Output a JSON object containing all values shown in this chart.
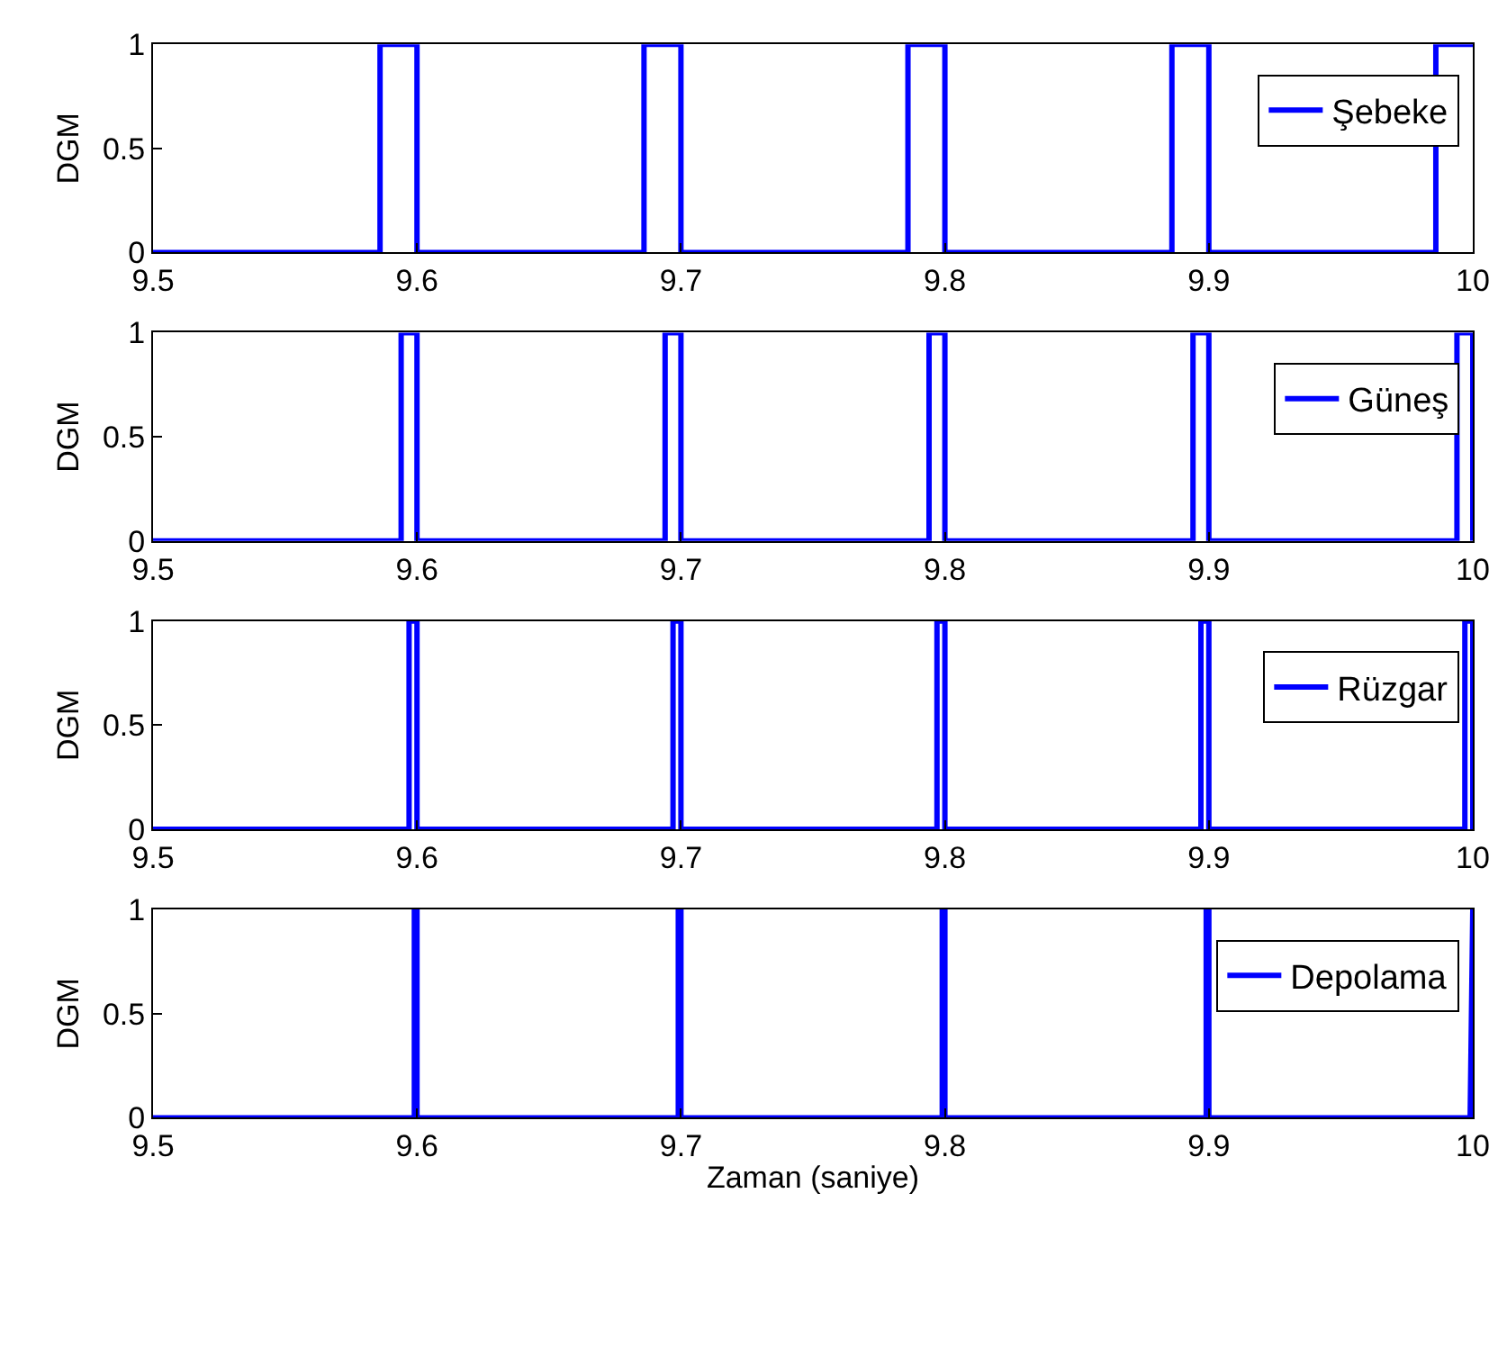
{
  "chart_data": [
    {
      "type": "line",
      "ylabel": "DGM",
      "xlim": [
        9.5,
        10
      ],
      "ylim": [
        0,
        1
      ],
      "xticks": [
        9.5,
        9.6,
        9.7,
        9.8,
        9.9,
        10
      ],
      "yticks": [
        0,
        0.5,
        1
      ],
      "legend": "top right",
      "series": [
        {
          "name": "Şebeke",
          "color": "#0000ff",
          "x": [
            9.5,
            9.586,
            9.586,
            9.6,
            9.6,
            9.686,
            9.686,
            9.7,
            9.7,
            9.786,
            9.786,
            9.8,
            9.8,
            9.886,
            9.886,
            9.9,
            9.9,
            9.986,
            9.986,
            10
          ],
          "values": [
            0,
            0,
            1,
            1,
            0,
            0,
            1,
            1,
            0,
            0,
            1,
            1,
            0,
            0,
            1,
            1,
            0,
            0,
            1,
            1
          ]
        }
      ]
    },
    {
      "type": "line",
      "ylabel": "DGM",
      "xlim": [
        9.5,
        10
      ],
      "ylim": [
        0,
        1
      ],
      "xticks": [
        9.5,
        9.6,
        9.7,
        9.8,
        9.9,
        10
      ],
      "yticks": [
        0,
        0.5,
        1
      ],
      "legend": "top right",
      "series": [
        {
          "name": "Güneş",
          "color": "#0000ff",
          "x": [
            9.5,
            9.594,
            9.594,
            9.6,
            9.6,
            9.694,
            9.694,
            9.7,
            9.7,
            9.794,
            9.794,
            9.8,
            9.8,
            9.894,
            9.894,
            9.9,
            9.9,
            9.994,
            9.994,
            10,
            10
          ],
          "values": [
            0,
            0,
            1,
            1,
            0,
            0,
            1,
            1,
            0,
            0,
            1,
            1,
            0,
            0,
            1,
            1,
            0,
            0,
            1,
            1,
            0
          ]
        }
      ]
    },
    {
      "type": "line",
      "ylabel": "DGM",
      "xlim": [
        9.5,
        10
      ],
      "ylim": [
        0,
        1
      ],
      "xticks": [
        9.5,
        9.6,
        9.7,
        9.8,
        9.9,
        10
      ],
      "yticks": [
        0,
        0.5,
        1
      ],
      "legend": "top right",
      "series": [
        {
          "name": "Rüzgar",
          "color": "#0000ff",
          "x": [
            9.5,
            9.597,
            9.597,
            9.6,
            9.6,
            9.697,
            9.697,
            9.7,
            9.7,
            9.797,
            9.797,
            9.8,
            9.8,
            9.897,
            9.897,
            9.9,
            9.9,
            9.997,
            9.997,
            10,
            10
          ],
          "values": [
            0,
            0,
            1,
            1,
            0,
            0,
            1,
            1,
            0,
            0,
            1,
            1,
            0,
            0,
            1,
            1,
            0,
            0,
            1,
            1,
            0
          ]
        }
      ]
    },
    {
      "type": "line",
      "ylabel": "DGM",
      "xlabel": "Zaman (saniye)",
      "xlim": [
        9.5,
        10
      ],
      "ylim": [
        0,
        1
      ],
      "xticks": [
        9.5,
        9.6,
        9.7,
        9.8,
        9.9,
        10
      ],
      "yticks": [
        0,
        0.5,
        1
      ],
      "legend": "top right",
      "series": [
        {
          "name": "Depolama",
          "color": "#0000ff",
          "x": [
            9.5,
            9.599,
            9.599,
            9.6,
            9.6,
            9.699,
            9.699,
            9.7,
            9.7,
            9.799,
            9.799,
            9.8,
            9.8,
            9.899,
            9.899,
            9.9,
            9.9,
            9.999,
            10
          ],
          "values": [
            0,
            0,
            1,
            1,
            0,
            0,
            1,
            1,
            0,
            0,
            1,
            1,
            0,
            0,
            1,
            1,
            0,
            0,
            1
          ]
        }
      ]
    }
  ]
}
